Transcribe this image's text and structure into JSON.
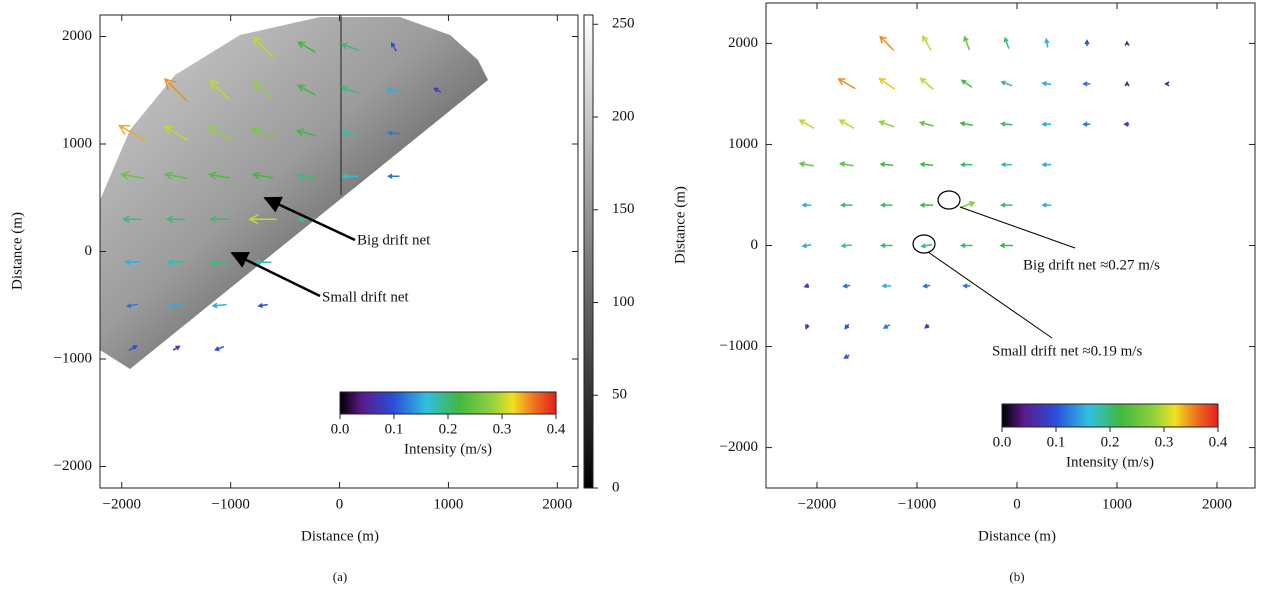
{
  "chart_data": [
    {
      "type": "quiver",
      "panel_label": "(a)",
      "x_label": "Distance (m)",
      "y_label": "Distance (m)",
      "xlim": [
        -2200,
        2190
      ],
      "ylim": [
        -2200,
        2200
      ],
      "xticks": [
        {
          "value": -2000,
          "label": "−2000"
        },
        {
          "value": -1000,
          "label": "−1000"
        },
        0,
        1000,
        2000
      ],
      "yticks": [
        {
          "value": -2000,
          "label": "−2000"
        },
        {
          "value": -1000,
          "label": "−1000"
        },
        0,
        1000,
        2000
      ],
      "arrows": {
        "x": [
          -700,
          -300,
          100,
          500,
          -1500,
          -1100,
          -700,
          -300,
          100,
          500,
          900,
          -1900,
          -1500,
          -1100,
          -700,
          -300,
          100,
          500,
          -1900,
          -1500,
          -1100,
          -700,
          -300,
          100,
          500,
          -1900,
          -1500,
          -1100,
          -700,
          -300,
          -1900,
          -1500,
          -1100,
          -700,
          -1900,
          -1500,
          -1100,
          -700,
          -1900,
          -1500,
          -1100
        ],
        "y": [
          1900,
          1900,
          1900,
          1900,
          1500,
          1500,
          1500,
          1500,
          1500,
          1500,
          1500,
          1100,
          1100,
          1100,
          1100,
          1100,
          1100,
          1100,
          700,
          700,
          700,
          700,
          700,
          700,
          700,
          300,
          300,
          300,
          300,
          300,
          -100,
          -100,
          -100,
          -100,
          -500,
          -500,
          -500,
          -500,
          -900,
          -900,
          -900
        ],
        "speed": [
          0.3,
          0.22,
          0.2,
          0.1,
          0.35,
          0.3,
          0.28,
          0.22,
          0.2,
          0.15,
          0.08,
          0.34,
          0.3,
          0.28,
          0.26,
          0.22,
          0.18,
          0.12,
          0.25,
          0.24,
          0.23,
          0.22,
          0.2,
          0.17,
          0.12,
          0.2,
          0.2,
          0.2,
          0.3,
          0.18,
          0.15,
          0.18,
          0.2,
          0.18,
          0.12,
          0.15,
          0.15,
          0.1,
          0.1,
          0.08,
          0.1
        ],
        "direction": [
          135,
          150,
          160,
          120,
          135,
          135,
          140,
          150,
          160,
          170,
          150,
          150,
          150,
          150,
          160,
          165,
          170,
          175,
          170,
          170,
          170,
          170,
          175,
          180,
          180,
          180,
          180,
          180,
          180,
          180,
          180,
          180,
          180,
          180,
          190,
          185,
          185,
          190,
          30,
          30,
          200
        ]
      },
      "colorbar": {
        "label": "Intensity (m/s)",
        "lim": [
          0,
          0.4
        ],
        "ticks": [
          {
            "value": 0,
            "label": "0.0"
          },
          0.1,
          0.2,
          0.3,
          0.4
        ]
      },
      "image_colorbar": {
        "lim": [
          0,
          255
        ],
        "ticks": [
          0,
          50,
          100,
          150,
          200,
          250
        ]
      },
      "annotations": [
        "Big drift net",
        "Small drift net"
      ]
    },
    {
      "type": "quiver",
      "panel_label": "(b)",
      "x_label": "Distance (m)",
      "y_label": "Distance (m)",
      "xlim": [
        -2510,
        2380
      ],
      "ylim": [
        -2400,
        2400
      ],
      "xticks": [
        {
          "value": -2000,
          "label": "−2000"
        },
        {
          "value": -1000,
          "label": "−1000"
        },
        0,
        1000,
        2000
      ],
      "yticks": [
        {
          "value": -2000,
          "label": "−2000"
        },
        {
          "value": -1000,
          "label": "−1000"
        },
        0,
        1000,
        2000
      ],
      "arrows": {
        "x": [
          -1300,
          -900,
          -500,
          -100,
          300,
          700,
          1100,
          -1700,
          -1300,
          -900,
          -500,
          -100,
          300,
          700,
          1100,
          1500,
          -2100,
          -1700,
          -1300,
          -900,
          -500,
          -100,
          300,
          700,
          1100,
          -2100,
          -1700,
          -1300,
          -900,
          -500,
          -100,
          300,
          -2100,
          -1700,
          -1300,
          -900,
          -500,
          -100,
          300,
          -2100,
          -1700,
          -1300,
          -900,
          -500,
          -100,
          -2100,
          -1700,
          -1300,
          -900,
          -500,
          -2100,
          -1700,
          -1300,
          -900,
          -1700
        ],
        "y": [
          2000,
          2000,
          2000,
          2000,
          2000,
          2000,
          2000,
          1600,
          1600,
          1600,
          1600,
          1600,
          1600,
          1600,
          1600,
          1600,
          1200,
          1200,
          1200,
          1200,
          1200,
          1200,
          1200,
          1200,
          1200,
          800,
          800,
          800,
          800,
          800,
          800,
          800,
          400,
          400,
          400,
          400,
          400,
          400,
          400,
          0,
          0,
          0,
          0,
          0,
          0,
          -400,
          -400,
          -400,
          -400,
          -400,
          -800,
          -800,
          -800,
          -800,
          -1100
        ],
        "speed": [
          0.35,
          0.3,
          0.25,
          0.2,
          0.15,
          0.1,
          0.05,
          0.35,
          0.33,
          0.3,
          0.22,
          0.2,
          0.15,
          0.12,
          0.05,
          0.05,
          0.3,
          0.3,
          0.28,
          0.25,
          0.22,
          0.2,
          0.15,
          0.12,
          0.08,
          0.25,
          0.24,
          0.22,
          0.22,
          0.2,
          0.18,
          0.15,
          0.15,
          0.2,
          0.2,
          0.22,
          0.27,
          0.2,
          0.15,
          0.15,
          0.18,
          0.2,
          0.19,
          0.2,
          0.22,
          0.08,
          0.12,
          0.15,
          0.12,
          0.12,
          0.08,
          0.1,
          0.12,
          0.08,
          0.1
        ],
        "direction": [
          135,
          120,
          110,
          110,
          100,
          90,
          90,
          150,
          145,
          140,
          145,
          160,
          170,
          180,
          90,
          180,
          150,
          150,
          160,
          165,
          170,
          175,
          180,
          180,
          180,
          170,
          170,
          175,
          175,
          180,
          180,
          180,
          180,
          180,
          180,
          180,
          20,
          180,
          180,
          190,
          185,
          180,
          190,
          180,
          180,
          200,
          190,
          180,
          190,
          180,
          250,
          230,
          210,
          220,
          210
        ]
      },
      "colorbar": {
        "label": "Intensity (m/s)",
        "lim": [
          0,
          0.4
        ],
        "ticks": [
          {
            "value": 0,
            "label": "0.0"
          },
          0.1,
          0.2,
          0.3,
          0.4
        ]
      },
      "annotations": [
        "Big drift net ≈0.27 m/s",
        "Small drift net ≈0.19 m/s"
      ]
    }
  ]
}
